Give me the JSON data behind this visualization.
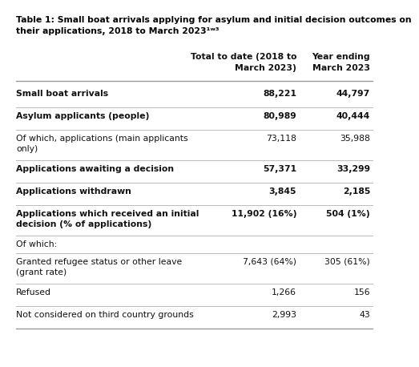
{
  "title_line1": "Table 1: Small boat arrivals applying for asylum and initial decision outcomes on",
  "title_line2": "their applications, 2018 to March 2023¹ʷ³",
  "col1_header_line1": "Total to date (2018 to",
  "col1_header_line2": "March 2023)",
  "col2_header_line1": "Year ending",
  "col2_header_line2": "March 2023",
  "rows": [
    {
      "label": "Small boat arrivals",
      "col1": "88,221",
      "col2": "44,797",
      "bold": true,
      "multiline": false
    },
    {
      "label": "Asylum applicants (people)",
      "col1": "80,989",
      "col2": "40,444",
      "bold": true,
      "multiline": false
    },
    {
      "label": "Of which, applications (main applicants\nonly)",
      "col1": "73,118",
      "col2": "35,988",
      "bold": false,
      "multiline": true
    },
    {
      "label": "Applications awaiting a decision",
      "col1": "57,371",
      "col2": "33,299",
      "bold": true,
      "multiline": false
    },
    {
      "label": "Applications withdrawn",
      "col1": "3,845",
      "col2": "2,185",
      "bold": true,
      "multiline": false
    },
    {
      "label": "Applications which received an initial\ndecision (% of applications)",
      "col1": "11,902 (16%)",
      "col2": "504 (1%)",
      "bold": true,
      "multiline": true
    },
    {
      "label": "Of which:",
      "col1": "",
      "col2": "",
      "bold": false,
      "multiline": false
    },
    {
      "label": "Granted refugee status or other leave\n(grant rate)",
      "col1": "7,643 (64%)",
      "col2": "305 (61%)",
      "bold": false,
      "multiline": true
    },
    {
      "label": "Refused",
      "col1": "1,266",
      "col2": "156",
      "bold": false,
      "multiline": false
    },
    {
      "label": "Not considered on third country grounds",
      "col1": "2,993",
      "col2": "43",
      "bold": false,
      "multiline": false
    }
  ],
  "bg_color": "#ffffff",
  "text_color": "#111111",
  "line_color": "#bbbbbb",
  "title_color": "#000000",
  "font_size_title": 7.8,
  "font_size_header": 7.8,
  "font_size_body": 7.8
}
